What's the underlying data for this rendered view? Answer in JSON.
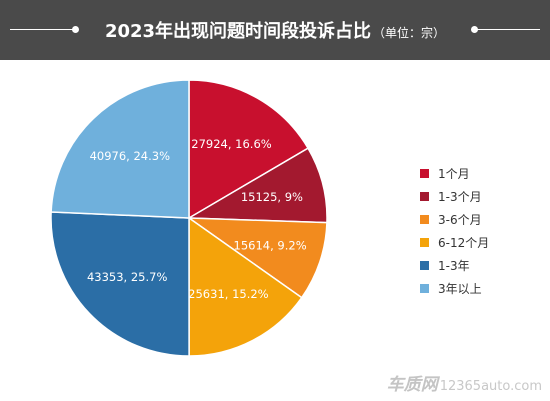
{
  "title": {
    "main": "2023年出现问题时间段投诉占比",
    "unit": "（单位：宗）"
  },
  "chart_data": {
    "type": "pie",
    "title": "2023年出现问题时间段投诉占比",
    "unit": "（单位：宗）",
    "legend_position": "right",
    "slices": [
      {
        "name": "1个月",
        "value": 27924,
        "percent": 16.6,
        "label": "27924, 16.6%",
        "color": "#c8102e"
      },
      {
        "name": "1-3个月",
        "value": 15125,
        "percent": 9.0,
        "label": "15125, 9%",
        "color": "#a3192f"
      },
      {
        "name": "3-6个月",
        "value": 15614,
        "percent": 9.2,
        "label": "15614, 9.2%",
        "color": "#f28b1e"
      },
      {
        "name": "6-12个月",
        "value": 25631,
        "percent": 15.2,
        "label": "25631, 15.2%",
        "color": "#f4a30a"
      },
      {
        "name": "1-3年",
        "value": 43353,
        "percent": 25.7,
        "label": "43353, 25.7%",
        "color": "#2b6ea6"
      },
      {
        "name": "3年以上",
        "value": 40976,
        "percent": 24.3,
        "label": "40976, 24.3%",
        "color": "#6fb0dc"
      }
    ]
  },
  "watermark": {
    "brand": "车质网",
    "site": "12365auto.com"
  }
}
